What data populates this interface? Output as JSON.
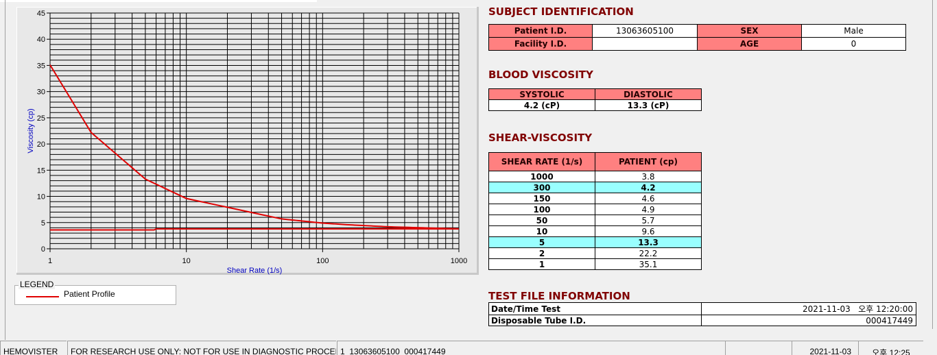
{
  "chart_data": {
    "type": "line",
    "xlabel": "Shear Rate (1/s)",
    "ylabel": "Viscosity (cp)",
    "xscale": "log",
    "xlim": [
      1,
      1000
    ],
    "ylim": [
      0,
      45
    ],
    "xticks": [
      "1",
      "10",
      "100",
      "1000"
    ],
    "yticks": [
      "0",
      "5",
      "10",
      "15",
      "20",
      "25",
      "30",
      "35",
      "40",
      "45"
    ],
    "grid": true,
    "series": [
      {
        "name": "Patient Profile",
        "color": "#e00000",
        "x": [
          1,
          2,
          5,
          10,
          50,
          100,
          150,
          300,
          1000
        ],
        "y": [
          35.1,
          22.2,
          13.3,
          9.6,
          5.7,
          4.9,
          4.6,
          4.2,
          3.8
        ]
      },
      {
        "color": "#e00000",
        "x": [
          1,
          5.8,
          6,
          1000
        ],
        "y": [
          3.6,
          3.6,
          3.8,
          3.8
        ]
      }
    ]
  },
  "legend": {
    "title": "LEGEND",
    "entry": "Patient Profile"
  },
  "subject": {
    "title": "SUBJECT IDENTIFICATION",
    "patient_id_label": "Patient I.D.",
    "patient_id": "13063605100",
    "sex_label": "SEX",
    "sex": "Male",
    "facility_label": "Facility I.D.",
    "facility": "",
    "age_label": "AGE",
    "age": "0"
  },
  "blood": {
    "title": "BLOOD VISCOSITY",
    "systolic_label": "SYSTOLIC",
    "diastolic_label": "DIASTOLIC",
    "systolic": "4.2 (cP)",
    "diastolic": "13.3 (cP)"
  },
  "shear": {
    "title": "SHEAR-VISCOSITY",
    "col1": "SHEAR RATE (1/s)",
    "col2": "PATIENT (cp)",
    "rows": [
      [
        "1000",
        "3.8",
        false
      ],
      [
        "300",
        "4.2",
        true
      ],
      [
        "150",
        "4.6",
        false
      ],
      [
        "100",
        "4.9",
        false
      ],
      [
        "50",
        "5.7",
        false
      ],
      [
        "10",
        "9.6",
        false
      ],
      [
        "5",
        "13.3",
        true
      ],
      [
        "2",
        "22.2",
        false
      ],
      [
        "1",
        "35.1",
        false
      ]
    ]
  },
  "testfile": {
    "title": "TEST FILE INFORMATION",
    "date_label": "Date/Time Test",
    "date": "2021-11-03   오후 12:20:00",
    "tube_label": "Disposable Tube I.D.",
    "tube": "000417449"
  },
  "statusbar": {
    "app": "HEMOVISTER",
    "notice": "FOR RESEARCH USE ONLY: NOT FOR USE IN DIAGNOSTIC PROCEDURES",
    "file": "1  13063605100  000417449",
    "blank": "",
    "date": "2021-11-03",
    "time": "오후 12:25"
  },
  "colors": {
    "header": "#ff8080",
    "highlight": "#99ffff",
    "title": "#800000",
    "curve": "#e00000",
    "axis_label": "#0000c0"
  }
}
